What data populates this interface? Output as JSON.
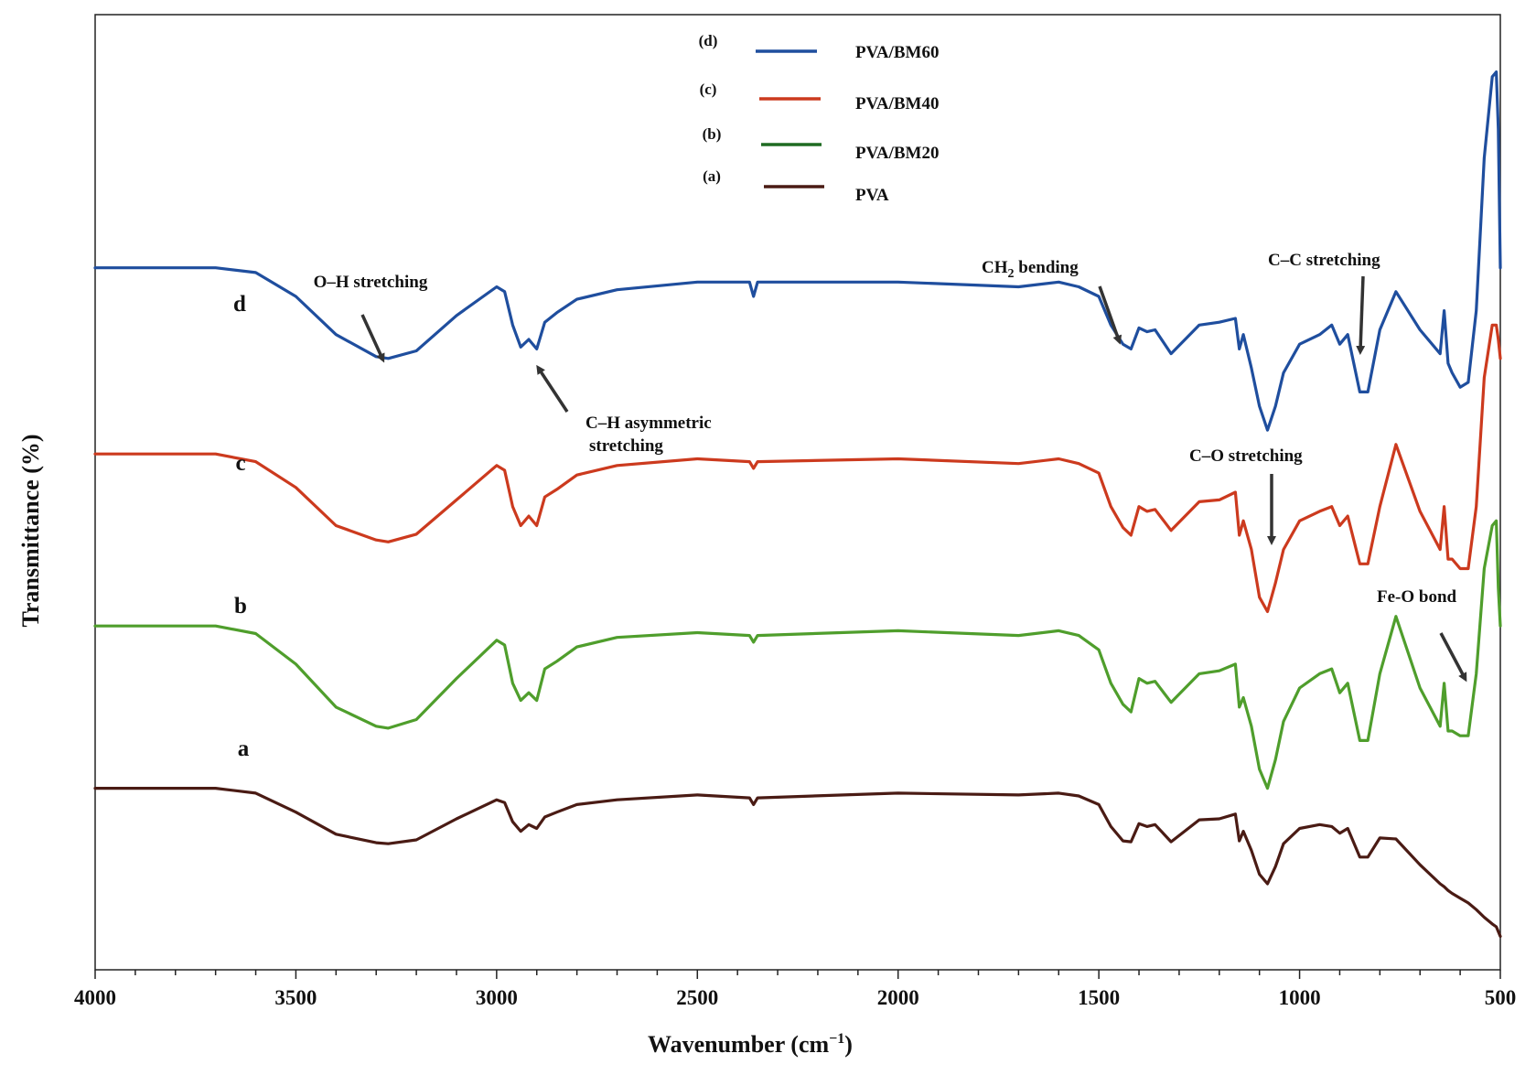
{
  "chart_data": {
    "type": "line",
    "title": "",
    "xlabel_main": "Wavenumber (cm",
    "xlabel_sup": "−1",
    "xlabel_close": ")",
    "ylabel": "Transmittance (%)",
    "xlim": [
      4000,
      500
    ],
    "ylim": [
      0,
      100
    ],
    "xticks": [
      4000,
      3500,
      3000,
      2500,
      2000,
      1500,
      1000,
      500
    ],
    "legend": [
      {
        "tag": "(d)",
        "name": "PVA/BM60",
        "color": "#1f4e9e"
      },
      {
        "tag": "(c)",
        "name": "PVA/BM40",
        "color": "#cc3a1e"
      },
      {
        "tag": "(b)",
        "name": "PVA/BM20",
        "color": "#4f9e2c"
      },
      {
        "tag": "(a)",
        "name": "PVA",
        "color": "#4a1b14"
      }
    ],
    "series": [
      {
        "name": "PVA/BM60",
        "label": "d",
        "color": "#1f4e9e",
        "x": [
          4000,
          3700,
          3600,
          3500,
          3400,
          3300,
          3270,
          3200,
          3100,
          3000,
          2980,
          2960,
          2940,
          2920,
          2900,
          2880,
          2850,
          2800,
          2700,
          2500,
          2370,
          2360,
          2350,
          2000,
          1700,
          1600,
          1550,
          1500,
          1470,
          1440,
          1420,
          1400,
          1380,
          1360,
          1320,
          1250,
          1200,
          1160,
          1150,
          1140,
          1120,
          1100,
          1080,
          1060,
          1040,
          1000,
          950,
          920,
          900,
          880,
          850,
          830,
          800,
          760,
          700,
          650,
          640,
          630,
          620,
          600,
          580,
          560,
          540,
          520,
          510,
          505,
          500
        ],
        "y": [
          73.5,
          73.5,
          73.0,
          70.5,
          66.5,
          64.2,
          64.0,
          64.8,
          68.5,
          71.5,
          71.0,
          67.5,
          65.2,
          66.0,
          65.0,
          67.8,
          68.8,
          70.2,
          71.2,
          72.0,
          72.0,
          70.5,
          72.0,
          72.0,
          71.5,
          72.0,
          71.5,
          70.5,
          67.5,
          65.5,
          65.0,
          67.2,
          66.8,
          67.0,
          64.5,
          67.5,
          67.8,
          68.2,
          65.0,
          66.5,
          63.0,
          59.0,
          56.5,
          59.0,
          62.5,
          65.5,
          66.5,
          67.5,
          65.5,
          66.5,
          60.5,
          60.5,
          67.0,
          71.0,
          67.0,
          64.5,
          69.0,
          63.5,
          62.5,
          61.0,
          61.5,
          69.0,
          85.0,
          93.5,
          94.0,
          88.0,
          73.5
        ]
      },
      {
        "name": "PVA/BM40",
        "label": "c",
        "color": "#cc3a1e",
        "x": [
          4000,
          3700,
          3600,
          3500,
          3400,
          3300,
          3270,
          3200,
          3100,
          3000,
          2980,
          2960,
          2940,
          2920,
          2900,
          2880,
          2850,
          2800,
          2700,
          2500,
          2370,
          2360,
          2350,
          2000,
          1700,
          1600,
          1550,
          1500,
          1470,
          1440,
          1420,
          1400,
          1380,
          1360,
          1320,
          1250,
          1200,
          1160,
          1150,
          1140,
          1120,
          1100,
          1080,
          1060,
          1040,
          1000,
          950,
          920,
          900,
          880,
          850,
          830,
          800,
          760,
          700,
          650,
          640,
          630,
          620,
          600,
          580,
          560,
          540,
          520,
          510,
          505,
          500
        ],
        "y": [
          54.0,
          54.0,
          53.2,
          50.5,
          46.5,
          45.0,
          44.8,
          45.6,
          49.2,
          52.8,
          52.3,
          48.5,
          46.5,
          47.5,
          46.5,
          49.5,
          50.3,
          51.8,
          52.8,
          53.5,
          53.2,
          52.5,
          53.2,
          53.5,
          53.0,
          53.5,
          53.0,
          52.0,
          48.5,
          46.3,
          45.5,
          48.5,
          48.0,
          48.2,
          46.0,
          49.0,
          49.2,
          50.0,
          45.5,
          47.0,
          44.0,
          39.0,
          37.5,
          40.5,
          44.0,
          47.0,
          48.0,
          48.5,
          46.5,
          47.5,
          42.5,
          42.5,
          48.5,
          55.0,
          48.0,
          44.0,
          48.5,
          43.0,
          43.0,
          42.0,
          42.0,
          48.5,
          62.0,
          67.5,
          67.5,
          66.0,
          64.0
        ]
      },
      {
        "name": "PVA/BM20",
        "label": "b",
        "color": "#4f9e2c",
        "x": [
          4000,
          3700,
          3600,
          3500,
          3400,
          3300,
          3270,
          3200,
          3100,
          3000,
          2980,
          2960,
          2940,
          2920,
          2900,
          2880,
          2850,
          2800,
          2700,
          2500,
          2370,
          2360,
          2350,
          2000,
          1700,
          1600,
          1550,
          1500,
          1470,
          1440,
          1420,
          1400,
          1380,
          1360,
          1320,
          1250,
          1200,
          1160,
          1150,
          1140,
          1120,
          1100,
          1080,
          1060,
          1040,
          1000,
          950,
          920,
          900,
          880,
          850,
          830,
          800,
          760,
          700,
          650,
          640,
          630,
          620,
          600,
          580,
          560,
          540,
          520,
          510,
          505,
          500
        ],
        "y": [
          36.0,
          36.0,
          35.2,
          32.0,
          27.5,
          25.5,
          25.3,
          26.2,
          30.5,
          34.5,
          34.0,
          30.0,
          28.2,
          29.0,
          28.2,
          31.5,
          32.3,
          33.8,
          34.8,
          35.3,
          35.0,
          34.3,
          35.0,
          35.5,
          35.0,
          35.5,
          35.0,
          33.5,
          30.0,
          27.8,
          27.0,
          30.5,
          30.0,
          30.2,
          28.0,
          31.0,
          31.3,
          32.0,
          27.5,
          28.5,
          25.5,
          21.0,
          19.0,
          22.0,
          26.0,
          29.5,
          31.0,
          31.5,
          29.0,
          30.0,
          24.0,
          24.0,
          31.0,
          37.0,
          29.5,
          25.5,
          30.0,
          25.0,
          25.0,
          24.5,
          24.5,
          31.0,
          42.0,
          46.5,
          47.0,
          40.0,
          36.0
        ]
      },
      {
        "name": "PVA",
        "label": "a",
        "color": "#4a1b14",
        "x": [
          4000,
          3700,
          3600,
          3500,
          3400,
          3300,
          3270,
          3200,
          3100,
          3000,
          2980,
          2960,
          2940,
          2920,
          2900,
          2880,
          2850,
          2800,
          2700,
          2500,
          2370,
          2360,
          2350,
          2000,
          1700,
          1600,
          1550,
          1500,
          1470,
          1440,
          1420,
          1400,
          1380,
          1360,
          1320,
          1250,
          1200,
          1160,
          1150,
          1140,
          1120,
          1100,
          1080,
          1060,
          1040,
          1000,
          950,
          920,
          900,
          880,
          850,
          830,
          800,
          760,
          700,
          650,
          640,
          630,
          620,
          600,
          580,
          560,
          540,
          520,
          510,
          505,
          500
        ],
        "y": [
          19.0,
          19.0,
          18.5,
          16.5,
          14.2,
          13.3,
          13.2,
          13.6,
          15.8,
          17.8,
          17.5,
          15.5,
          14.5,
          15.2,
          14.8,
          16.0,
          16.5,
          17.3,
          17.8,
          18.3,
          18.0,
          17.3,
          18.0,
          18.5,
          18.3,
          18.5,
          18.2,
          17.3,
          15.0,
          13.5,
          13.4,
          15.3,
          15.0,
          15.2,
          13.4,
          15.7,
          15.8,
          16.3,
          13.5,
          14.5,
          12.5,
          10.0,
          9.0,
          10.8,
          13.2,
          14.8,
          15.2,
          15.0,
          14.3,
          14.8,
          11.8,
          11.8,
          13.8,
          13.7,
          11.0,
          9.0,
          8.7,
          8.3,
          8.0,
          7.5,
          7.0,
          6.3,
          5.5,
          4.8,
          4.5,
          4.0,
          3.5
        ]
      }
    ],
    "annotations": {
      "oh": {
        "line1": "O–H stretching"
      },
      "ch": {
        "line1": "C–H asymmetric",
        "line2": "stretching"
      },
      "ch2": {
        "pre": "CH",
        "sub": "2",
        "post": " bending"
      },
      "cc": {
        "line1": "C–C stretching"
      },
      "co": {
        "line1": "C–O stretching"
      },
      "feo": {
        "line1": "Fe-O bond"
      }
    }
  }
}
